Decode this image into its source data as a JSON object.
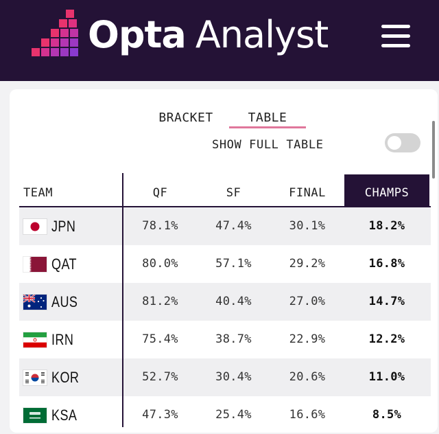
{
  "header": {
    "logo_bold": "Opta",
    "logo_light": "Analyst",
    "background": "#241236"
  },
  "icons": {
    "logo": "opta-pixel-logo-icon",
    "menu": "hamburger-menu-icon"
  },
  "tabs": [
    {
      "label": "BRACKET",
      "active": false
    },
    {
      "label": "TABLE",
      "active": true
    }
  ],
  "toggle": {
    "label": "SHOW FULL TABLE",
    "on": false
  },
  "table": {
    "headers": {
      "team": "TEAM",
      "qf": "QF",
      "sf": "SF",
      "final": "FINAL",
      "champs": "CHAMPS"
    },
    "rows": [
      {
        "team": "JPN",
        "flag": "japan-flag-icon",
        "qf": "78.1%",
        "sf": "47.4%",
        "final": "30.1%",
        "champs": "18.2%"
      },
      {
        "team": "QAT",
        "flag": "qatar-flag-icon",
        "qf": "80.0%",
        "sf": "57.1%",
        "final": "29.2%",
        "champs": "16.8%"
      },
      {
        "team": "AUS",
        "flag": "australia-flag-icon",
        "qf": "81.2%",
        "sf": "40.4%",
        "final": "27.0%",
        "champs": "14.7%"
      },
      {
        "team": "IRN",
        "flag": "iran-flag-icon",
        "qf": "75.4%",
        "sf": "38.7%",
        "final": "22.9%",
        "champs": "12.2%"
      },
      {
        "team": "KOR",
        "flag": "south-korea-flag-icon",
        "qf": "52.7%",
        "sf": "30.4%",
        "final": "20.6%",
        "champs": "11.0%"
      },
      {
        "team": "KSA",
        "flag": "saudi-arabia-flag-icon",
        "qf": "47.3%",
        "sf": "25.4%",
        "final": "16.6%",
        "champs": "8.5%"
      }
    ]
  },
  "colors": {
    "brand_dark": "#241236",
    "accent_pink": "#e0779b",
    "row_alt": "#efeff1"
  }
}
